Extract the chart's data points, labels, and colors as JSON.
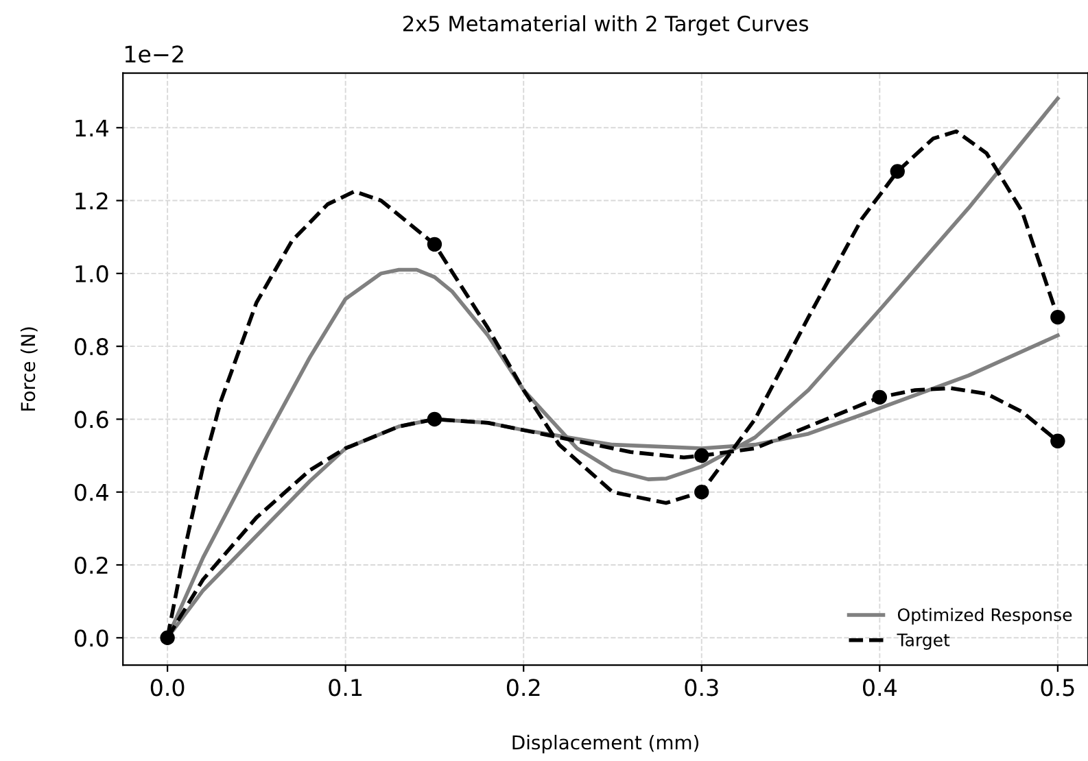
{
  "chart_data": {
    "type": "line",
    "title": "2x5 Metamaterial with 2 Target Curves",
    "xlabel": "Displacement (mm)",
    "ylabel": "Force (N)",
    "annotations": [
      "1e−2"
    ],
    "xlim": [
      -0.025,
      0.517
    ],
    "xticks": [
      {
        "value": 0,
        "label": "0.0"
      },
      0.1,
      0.2,
      0.3,
      0.4,
      0.5
    ],
    "ylim": [
      -0.075,
      1.55
    ],
    "yticks": [
      {
        "value": 0,
        "label": "0.0"
      },
      0.2,
      0.4,
      0.6,
      0.8,
      {
        "value": 1,
        "label": "1.0"
      },
      1.2,
      1.4
    ],
    "grid": true,
    "legend": "bottom right",
    "series": [
      {
        "name": "Optimized Response",
        "color": "#808080",
        "line_style": "solid",
        "x": [
          0,
          0.02,
          0.05,
          0.08,
          0.1,
          0.12,
          0.13,
          0.14,
          0.15,
          0.16,
          0.18,
          0.2,
          0.23,
          0.25,
          0.27,
          0.28,
          0.3,
          0.33,
          0.36,
          0.4,
          0.45,
          0.5
        ],
        "values": [
          0,
          0.22,
          0.5,
          0.77,
          0.93,
          1.0,
          1.01,
          1.01,
          0.99,
          0.95,
          0.83,
          0.68,
          0.52,
          0.46,
          0.435,
          0.437,
          0.47,
          0.55,
          0.68,
          0.9,
          1.18,
          1.48
        ]
      },
      {
        "color": "#808080",
        "line_style": "solid",
        "x": [
          0,
          0.02,
          0.05,
          0.08,
          0.1,
          0.13,
          0.15,
          0.18,
          0.2,
          0.25,
          0.3,
          0.33,
          0.36,
          0.4,
          0.45,
          0.5
        ],
        "values": [
          0,
          0.13,
          0.28,
          0.43,
          0.52,
          0.58,
          0.6,
          0.59,
          0.57,
          0.53,
          0.52,
          0.53,
          0.56,
          0.63,
          0.72,
          0.83
        ]
      },
      {
        "name": "Target",
        "color": "#000000",
        "line_style": "dashed",
        "x": [
          0,
          0.01,
          0.02,
          0.03,
          0.05,
          0.07,
          0.09,
          0.105,
          0.12,
          0.15,
          0.18,
          0.2,
          0.22,
          0.25,
          0.28,
          0.3,
          0.33,
          0.36,
          0.39,
          0.41,
          0.43,
          0.443,
          0.46,
          0.48,
          0.5
        ],
        "values": [
          0,
          0.25,
          0.47,
          0.65,
          0.92,
          1.09,
          1.19,
          1.225,
          1.2,
          1.08,
          0.85,
          0.68,
          0.53,
          0.4,
          0.37,
          0.4,
          0.6,
          0.88,
          1.15,
          1.28,
          1.37,
          1.39,
          1.33,
          1.17,
          0.88
        ]
      },
      {
        "color": "#000000",
        "line_style": "dashed",
        "x": [
          0,
          0.02,
          0.05,
          0.08,
          0.1,
          0.13,
          0.15,
          0.18,
          0.2,
          0.23,
          0.26,
          0.29,
          0.3,
          0.33,
          0.36,
          0.4,
          0.42,
          0.44,
          0.46,
          0.48,
          0.5
        ],
        "values": [
          0,
          0.16,
          0.33,
          0.46,
          0.52,
          0.58,
          0.6,
          0.59,
          0.57,
          0.54,
          0.51,
          0.495,
          0.5,
          0.52,
          0.58,
          0.66,
          0.68,
          0.685,
          0.67,
          0.62,
          0.54
        ]
      },
      {
        "type": "scatter",
        "color": "#000000",
        "marker": "circle",
        "x": [
          0,
          0.15,
          0.15,
          0.3,
          0.3,
          0.41,
          0.4,
          0.5,
          0.5
        ],
        "values": [
          0,
          1.08,
          0.6,
          0.4,
          0.5,
          1.28,
          0.66,
          0.88,
          0.54
        ]
      }
    ]
  }
}
